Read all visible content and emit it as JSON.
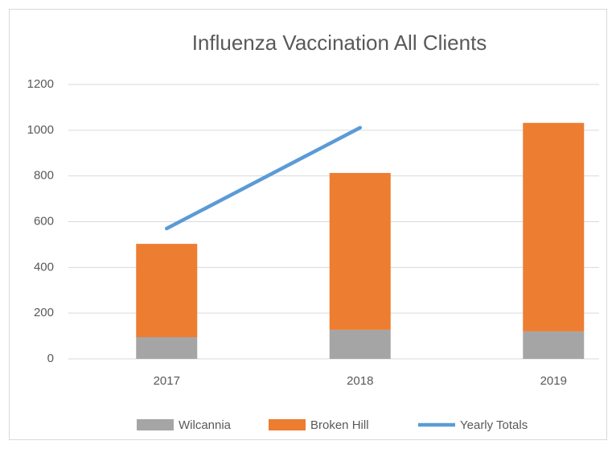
{
  "chart_data": {
    "type": "bar",
    "title": "Influenza Vaccination All Clients",
    "categories": [
      "2017",
      "2018",
      "2019"
    ],
    "series": [
      {
        "name": "Wilcannia",
        "type": "bar",
        "color": "#a5a5a5",
        "values": [
          95,
          127,
          120
        ]
      },
      {
        "name": "Broken Hill",
        "type": "bar",
        "color": "#ed7d31",
        "values": [
          408,
          686,
          912
        ]
      },
      {
        "name": "Yearly Totals",
        "type": "line",
        "color": "#5b9bd5",
        "values": [
          570,
          1011,
          null
        ]
      }
    ],
    "stacked": true,
    "ylim": [
      0,
      1200
    ],
    "yticks": [
      0,
      200,
      400,
      600,
      800,
      1000,
      1200
    ],
    "grid": true,
    "legend": "bottom"
  }
}
